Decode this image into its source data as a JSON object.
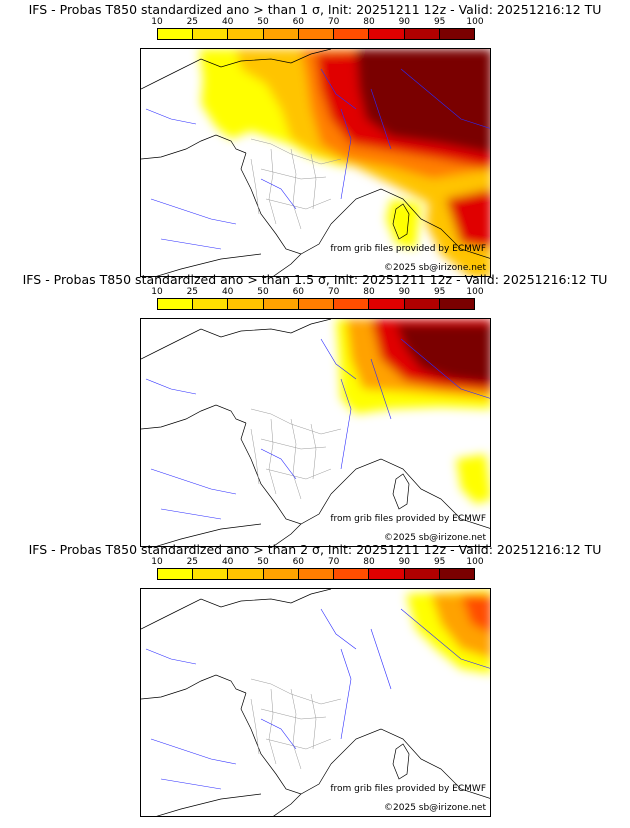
{
  "colorbar": {
    "ticks": [
      "10",
      "25",
      "40",
      "50",
      "60",
      "70",
      "80",
      "90",
      "95",
      "100"
    ],
    "colors": [
      "#ffff00",
      "#ffe000",
      "#ffc400",
      "#ffa200",
      "#ff7e00",
      "#ff4e00",
      "#e00000",
      "#b00000",
      "#7a0000"
    ]
  },
  "panels": [
    {
      "title": "IFS - Probas T850  standardized ano > than 1 σ, Init: 20251211 12z - Valid: 20251216:12 TU",
      "source_credit": "from grib files provided by ECMWF",
      "copyright": "©2025 sb@irizone.net",
      "threshold_sigma": 1
    },
    {
      "title": "IFS - Probas T850  standardized ano > than 1.5 σ, Init: 20251211 12z - Valid: 20251216:12 TU",
      "source_credit": "from grib files provided by ECMWF",
      "copyright": "©2025 sb@irizone.net",
      "threshold_sigma": 1.5
    },
    {
      "title": "IFS - Probas T850  standardized ano > than 2 σ, Init: 20251211 12z - Valid: 20251216:12 TU",
      "source_credit": "from grib files provided by ECMWF",
      "copyright": "©2025 sb@irizone.net",
      "threshold_sigma": 2
    }
  ]
}
